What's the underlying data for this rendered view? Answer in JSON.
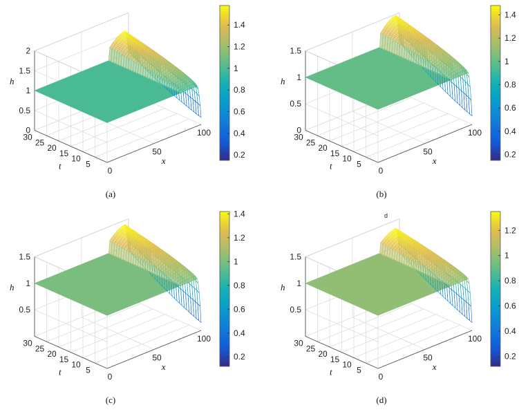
{
  "stray_label": "d",
  "chart_data": [
    {
      "type": "surface",
      "caption": "(a)",
      "xlabel": "x",
      "ylabel": "t",
      "zlabel": "h",
      "x_ticks": [
        "0",
        "50",
        "100"
      ],
      "t_ticks": [
        "5",
        "10",
        "15",
        "20",
        "25",
        "30"
      ],
      "z_ticks": [
        "0",
        "0.5",
        "1",
        "1.5",
        "2"
      ],
      "xlim": [
        0,
        100
      ],
      "tlim": [
        0,
        30
      ],
      "zlim": [
        0,
        2
      ],
      "surface": {
        "base": 1.0,
        "peak": 1.58,
        "min": 0.18
      },
      "colorbar": {
        "range": [
          0.15,
          1.58
        ],
        "ticks": [
          "0.2",
          "0.4",
          "0.6",
          "0.8",
          "1",
          "1.2",
          "1.4"
        ]
      }
    },
    {
      "type": "surface",
      "caption": "(b)",
      "xlabel": "x",
      "ylabel": "t",
      "zlabel": "h",
      "x_ticks": [
        "0",
        "50",
        "100"
      ],
      "t_ticks": [
        "5",
        "10",
        "15",
        "20",
        "25",
        "30"
      ],
      "z_ticks": [
        "0",
        "0.5",
        "1",
        "1.5"
      ],
      "xlim": [
        0,
        100
      ],
      "tlim": [
        0,
        30
      ],
      "zlim": [
        0,
        1.5
      ],
      "surface": {
        "base": 1.0,
        "peak": 1.48,
        "min": 0.16
      },
      "colorbar": {
        "range": [
          0.15,
          1.48
        ],
        "ticks": [
          "0.2",
          "0.4",
          "0.6",
          "0.8",
          "1",
          "1.2",
          "1.4"
        ]
      }
    },
    {
      "type": "surface",
      "caption": "(c)",
      "xlabel": "x",
      "ylabel": "t",
      "zlabel": "h",
      "x_ticks": [
        "0",
        "50",
        "100"
      ],
      "t_ticks": [
        "5",
        "10",
        "15",
        "20",
        "25",
        "30"
      ],
      "z_ticks": [
        "0.5",
        "1",
        "1.5"
      ],
      "xlim": [
        0,
        100
      ],
      "tlim": [
        0,
        30
      ],
      "zlim": [
        0,
        1.5
      ],
      "surface": {
        "base": 1.0,
        "peak": 1.42,
        "min": 0.15
      },
      "colorbar": {
        "range": [
          0.12,
          1.42
        ],
        "ticks": [
          "0.2",
          "0.4",
          "0.6",
          "0.8",
          "1",
          "1.2",
          "1.4"
        ]
      }
    },
    {
      "type": "surface",
      "caption": "(d)",
      "xlabel": "x",
      "ylabel": "t",
      "zlabel": "h",
      "x_ticks": [
        "0",
        "50",
        "100"
      ],
      "t_ticks": [
        "5",
        "10",
        "15",
        "20",
        "25",
        "30"
      ],
      "z_ticks": [
        "0.5",
        "1",
        "1.5"
      ],
      "xlim": [
        0,
        100
      ],
      "tlim": [
        0,
        30
      ],
      "zlim": [
        0,
        1.5
      ],
      "surface": {
        "base": 1.0,
        "peak": 1.35,
        "min": 0.15
      },
      "colorbar": {
        "range": [
          0.12,
          1.35
        ],
        "ticks": [
          "0.2",
          "0.4",
          "0.6",
          "0.8",
          "1",
          "1.2"
        ]
      }
    }
  ]
}
